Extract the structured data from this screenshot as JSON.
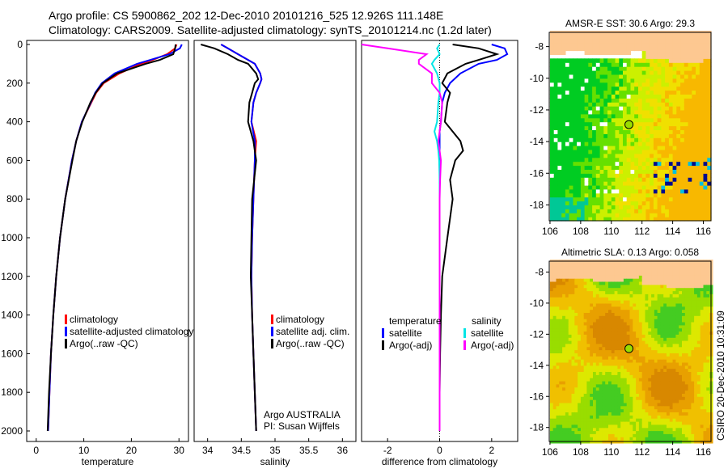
{
  "title_line1": "Argo profile: CS 5900862_202 12-Dec-2010 20101216_525 12.926S 111.148E",
  "title_line2": "Climatology: CARS2009. Satellite-adjusted climatology: synTS_20101214.nc (1.2d later)",
  "side_label": "CSIRO 20-Dec-2010 10:31:09",
  "colors": {
    "climatology": "#ff0000",
    "satellite": "#0000ff",
    "argo": "#000000",
    "sal_satellite": "#00e5e5",
    "sal_argo": "#ff00ff",
    "land": "#fdc891"
  },
  "chart_data": [
    {
      "type": "line",
      "name": "temperature",
      "xlabel": "temperature",
      "ylabel": "depth",
      "xlim": [
        -2,
        32
      ],
      "ylim": [
        2050,
        -20
      ],
      "xticks": [
        "0",
        "10",
        "20",
        "30"
      ],
      "xtick_values": [
        0,
        10,
        20,
        30
      ],
      "yticks": [
        "0",
        "200",
        "400",
        "600",
        "800",
        "1000",
        "1200",
        "1400",
        "1600",
        "1800",
        "2000"
      ],
      "ytick_values": [
        0,
        200,
        400,
        600,
        800,
        1000,
        1200,
        1400,
        1600,
        1800,
        2000
      ],
      "depth": [
        0,
        20,
        50,
        80,
        100,
        150,
        200,
        250,
        300,
        400,
        500,
        600,
        800,
        1000,
        1200,
        1400,
        1600,
        1800,
        2000
      ],
      "series": [
        {
          "name": "climatology",
          "color": "#ff0000",
          "values": [
            29.5,
            29.2,
            27.5,
            24.5,
            22,
            17.5,
            14.2,
            12.6,
            11.6,
            9.6,
            8.4,
            7.5,
            6.1,
            5.0,
            4.2,
            3.6,
            3.1,
            2.8,
            2.5
          ]
        },
        {
          "name": "satellite-adjusted climatology",
          "color": "#0000ff",
          "values": [
            30.6,
            30.2,
            28,
            24,
            21.2,
            16.5,
            13.8,
            12.4,
            11.5,
            9.6,
            8.4,
            7.5,
            6.1,
            5.0,
            4.2,
            3.6,
            3.1,
            2.8,
            2.5
          ]
        },
        {
          "name": "Argo(..raw -QC)",
          "color": "#000000",
          "values": [
            29.3,
            29.2,
            28.8,
            26,
            23,
            17,
            14,
            12.5,
            11.4,
            9.7,
            8.4,
            7.6,
            6.1,
            5.0,
            4.2,
            3.6,
            3.1,
            2.7,
            2.4
          ]
        }
      ],
      "legend": [
        "climatology",
        "satellite-adjusted climatology",
        "Argo(..raw -QC)"
      ]
    },
    {
      "type": "line",
      "name": "salinity",
      "xlabel": "salinity",
      "xlim": [
        33.8,
        36.2
      ],
      "xticks": [
        "34",
        "34.5",
        "35",
        "35.5",
        "36"
      ],
      "xtick_values": [
        34,
        34.5,
        35,
        35.5,
        36
      ],
      "depth": [
        0,
        20,
        50,
        80,
        100,
        150,
        180,
        200,
        250,
        300,
        400,
        500,
        600,
        800,
        1000,
        1200,
        1400,
        1600,
        1800,
        2000
      ],
      "series": [
        {
          "name": "climatology",
          "color": "#ff0000",
          "values": [
            34.2,
            34.3,
            34.45,
            34.6,
            34.7,
            34.78,
            34.8,
            34.78,
            34.72,
            34.68,
            34.65,
            34.72,
            34.7,
            34.68,
            34.66,
            34.65,
            34.66,
            34.68,
            34.7,
            34.72
          ]
        },
        {
          "name": "satellite adj. clim.",
          "color": "#0000ff",
          "values": [
            34.2,
            34.3,
            34.45,
            34.6,
            34.7,
            34.78,
            34.8,
            34.78,
            34.72,
            34.68,
            34.65,
            34.7,
            34.7,
            34.68,
            34.66,
            34.65,
            34.66,
            34.68,
            34.7,
            34.72
          ]
        },
        {
          "name": "Argo(..raw -QC)",
          "color": "#000000",
          "values": [
            33.9,
            34.1,
            34.3,
            34.45,
            34.6,
            34.72,
            34.75,
            34.7,
            34.66,
            34.62,
            34.6,
            34.68,
            34.72,
            34.66,
            34.65,
            34.64,
            34.66,
            34.68,
            34.7,
            34.72
          ]
        }
      ],
      "legend": [
        "climatology",
        "satellite adj. clim.",
        "Argo(..raw -QC)"
      ],
      "annotation1": "Argo AUSTRALIA",
      "annotation2": "PI: Susan Wijffels"
    },
    {
      "type": "line",
      "name": "difference",
      "xlabel": "difference from climatology",
      "xlim": [
        -3,
        3
      ],
      "xticks": [
        "-2",
        "0",
        "2"
      ],
      "xtick_values": [
        -2,
        0,
        2
      ],
      "depth": [
        0,
        20,
        50,
        80,
        100,
        150,
        200,
        250,
        300,
        400,
        450,
        500,
        550,
        600,
        700,
        800,
        1000,
        1200,
        1400,
        1600,
        1800,
        2000
      ],
      "series": [
        {
          "name": "temperature satellite",
          "color": "#0000ff",
          "values": [
            2.0,
            2.5,
            2.6,
            2.2,
            1.5,
            0.8,
            0.4,
            0.2,
            0.1,
            0.05,
            0,
            0,
            0,
            0,
            0,
            0,
            0,
            0,
            0,
            0,
            0,
            0
          ]
        },
        {
          "name": "temperature Argo(-adj)",
          "color": "#000000",
          "values": [
            0.5,
            1.5,
            2.2,
            1.5,
            1.0,
            0.3,
            0.1,
            0.4,
            0.3,
            0.2,
            0.5,
            0.8,
            0.9,
            0.6,
            0.4,
            0.5,
            0.3,
            0.1,
            0.05,
            0.02,
            0,
            0
          ]
        },
        {
          "name": "salinity satellite",
          "color": "#00e5e5",
          "values": [
            0,
            -0.1,
            0,
            -0.2,
            -0.3,
            -0.1,
            0,
            0,
            -0.05,
            -0.1,
            -0.2,
            -0.1,
            -0.05,
            -0.02,
            0,
            0,
            0,
            0,
            0,
            0,
            0,
            0
          ]
        },
        {
          "name": "salinity Argo(-adj)",
          "color": "#ff00ff",
          "values": [
            -3.0,
            -2.0,
            -0.5,
            -0.8,
            -0.8,
            -0.3,
            -0.3,
            0,
            0.1,
            0.05,
            0,
            -0.05,
            0,
            0.05,
            0.02,
            0,
            0,
            0,
            0,
            0,
            0,
            0
          ]
        }
      ],
      "legend_temperature_title": "temperature",
      "legend_salinity_title": "salinity",
      "legend": [
        "satellite",
        "Argo(-adj)",
        "satellite",
        "Argo(-adj)"
      ]
    },
    {
      "type": "heatmap",
      "name": "sst_map",
      "title": "AMSR-E SST: 30.6 Argo: 29.3",
      "xlim": [
        106,
        116.5
      ],
      "ylim": [
        -19,
        -7
      ],
      "xticks": [
        "106",
        "108",
        "110",
        "112",
        "114",
        "116"
      ],
      "xtick_values": [
        106,
        108,
        110,
        112,
        114,
        116
      ],
      "yticks": [
        "-8",
        "-10",
        "-12",
        "-14",
        "-16",
        "-18"
      ],
      "ytick_values": [
        -8,
        -10,
        -12,
        -14,
        -16,
        -18
      ],
      "argo_position": [
        111.148,
        -12.926
      ]
    },
    {
      "type": "heatmap",
      "name": "sla_map",
      "title": "Altimetric SLA: 0.13 Argo: 0.058",
      "xlim": [
        106,
        116.5
      ],
      "ylim": [
        -19,
        -7
      ],
      "xticks": [
        "106",
        "108",
        "110",
        "112",
        "114",
        "116"
      ],
      "xtick_values": [
        106,
        108,
        110,
        112,
        114,
        116
      ],
      "yticks": [
        "-8",
        "-10",
        "-12",
        "-14",
        "-16",
        "-18"
      ],
      "ytick_values": [
        -8,
        -10,
        -12,
        -14,
        -16,
        -18
      ],
      "argo_position": [
        111.148,
        -12.926
      ]
    }
  ]
}
